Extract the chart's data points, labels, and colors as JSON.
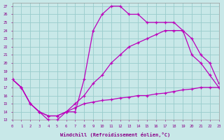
{
  "bg_color": "#c8e8e8",
  "line_color": "#bb00bb",
  "grid_color": "#99cccc",
  "xlabel": "Windchill (Refroidissement éolien,°C)",
  "xlabel_color": "#880088",
  "tick_color": "#880088",
  "ylim": [
    13,
    27.4
  ],
  "xlim": [
    0,
    23
  ],
  "ytick_vals": [
    13,
    14,
    15,
    16,
    17,
    18,
    19,
    20,
    21,
    22,
    23,
    24,
    25,
    26,
    27
  ],
  "xtick_vals": [
    0,
    1,
    2,
    3,
    4,
    5,
    6,
    7,
    8,
    9,
    10,
    11,
    12,
    13,
    14,
    15,
    16,
    17,
    18,
    19,
    20,
    21,
    22,
    23
  ],
  "curve1_x": [
    0,
    1,
    2,
    3,
    4,
    5,
    6,
    7,
    8,
    9,
    10,
    11,
    12,
    13,
    14,
    15,
    16,
    17,
    18,
    19,
    20,
    21,
    22,
    23
  ],
  "curve1_y": [
    18,
    17,
    15,
    14,
    13,
    13,
    14,
    14,
    18,
    24,
    26,
    27,
    27,
    26,
    26,
    25,
    25,
    25,
    25,
    24,
    21,
    20,
    18.5,
    17
  ],
  "curve2_x": [
    0,
    1,
    2,
    3,
    4,
    5,
    6,
    7,
    8,
    9,
    10,
    11,
    12,
    13,
    14,
    15,
    16,
    17,
    18,
    19,
    20,
    21,
    22,
    23
  ],
  "curve2_y": [
    18,
    17,
    15,
    14,
    13.5,
    13.5,
    14.0,
    15.0,
    16.0,
    17.5,
    18.5,
    20.0,
    21.0,
    22.0,
    22.5,
    23.0,
    23.5,
    24.0,
    24.0,
    24.0,
    23.0,
    21.0,
    20.0,
    17.5
  ],
  "curve3_x": [
    0,
    1,
    2,
    3,
    4,
    5,
    6,
    7,
    8,
    9,
    10,
    11,
    12,
    13,
    14,
    15,
    16,
    17,
    18,
    19,
    20,
    21,
    22,
    23
  ],
  "curve3_y": [
    18,
    17,
    15,
    14,
    13.5,
    13.5,
    14.0,
    14.5,
    15.0,
    15.2,
    15.4,
    15.5,
    15.7,
    15.8,
    16.0,
    16.0,
    16.2,
    16.3,
    16.5,
    16.7,
    16.8,
    17.0,
    17.0,
    17.0
  ]
}
